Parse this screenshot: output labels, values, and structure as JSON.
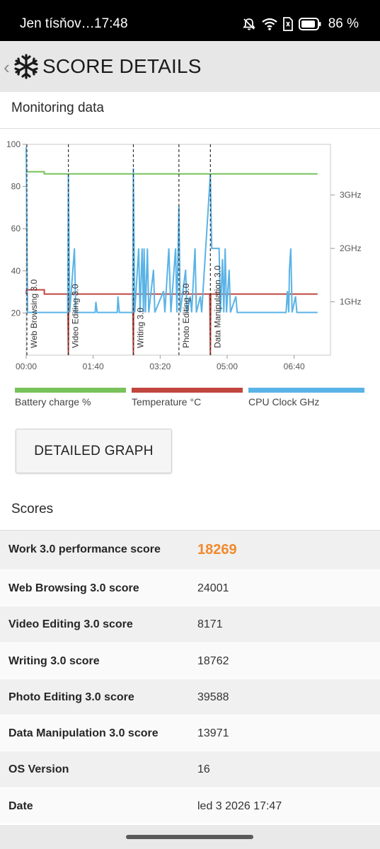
{
  "status_bar": {
    "carrier": "Jen tísňov…",
    "time": "17:48",
    "battery_percent": "86 %",
    "icons": [
      "dnd-off-icon",
      "wifi-icon",
      "sim-icon",
      "battery-icon"
    ]
  },
  "header": {
    "back_glyph": "‹",
    "title": "SCORE DETAILS",
    "logo_icon": "snowflake-icon"
  },
  "monitoring": {
    "title": "Monitoring data"
  },
  "chart_data": {
    "type": "line",
    "x_ticks": [
      "00:00",
      "01:40",
      "03:20",
      "05:00",
      "06:40"
    ],
    "xlim_seconds": [
      0,
      450
    ],
    "y_left_ticks": [
      "20",
      "40",
      "60",
      "80",
      "100"
    ],
    "ylim_left": [
      0,
      100
    ],
    "y_right_ticks": [
      "1GHz",
      "2GHz",
      "3GHz"
    ],
    "ylim_right_ghz": [
      0,
      3.95
    ],
    "grid": false,
    "markers": [
      {
        "label": "Web Browsing 3.0",
        "t": 0,
        "style": "dashed"
      },
      {
        "label": "Video Editing 3.0",
        "t": 63,
        "style": "dashed"
      },
      {
        "label": "Writing 3.0",
        "t": 160,
        "style": "dashed"
      },
      {
        "label": "Photo Editing 3.0",
        "t": 228,
        "style": "dashed"
      },
      {
        "label": "Data Manipulation 3.0",
        "t": 275,
        "style": "dashed"
      }
    ],
    "series": [
      {
        "name": "Battery charge %",
        "color": "#77c25a",
        "axis": "left",
        "points": [
          [
            0,
            87
          ],
          [
            27,
            87
          ],
          [
            27,
            86
          ],
          [
            435,
            86
          ]
        ]
      },
      {
        "name": "Temperature °C",
        "color": "#c0463e",
        "axis": "left",
        "points": [
          [
            0,
            29
          ],
          [
            0.5,
            31
          ],
          [
            27,
            31
          ],
          [
            27,
            29
          ],
          [
            62,
            29
          ],
          [
            63,
            0
          ],
          [
            63.5,
            29
          ],
          [
            159,
            29
          ],
          [
            160,
            0
          ],
          [
            160.5,
            29
          ],
          [
            274,
            29
          ],
          [
            275,
            0
          ],
          [
            275.5,
            29
          ],
          [
            435,
            29
          ]
        ]
      },
      {
        "name": "CPU Clock GHz",
        "color": "#5ab3e6",
        "axis": "right",
        "points": [
          [
            0,
            3.9
          ],
          [
            2,
            0.8
          ],
          [
            62,
            0.8
          ],
          [
            63,
            3.4
          ],
          [
            65,
            0.8
          ],
          [
            72,
            2.0
          ],
          [
            74,
            0.8
          ],
          [
            103,
            0.8
          ],
          [
            104,
            1.0
          ],
          [
            106,
            0.8
          ],
          [
            136,
            0.8
          ],
          [
            137,
            1.1
          ],
          [
            139,
            0.8
          ],
          [
            159,
            0.8
          ],
          [
            160,
            3.5
          ],
          [
            162,
            0.8
          ],
          [
            168,
            2.0
          ],
          [
            170,
            0.8
          ],
          [
            173,
            2.0
          ],
          [
            175,
            0.8
          ],
          [
            176,
            2.0
          ],
          [
            178,
            0.8
          ],
          [
            181,
            2.0
          ],
          [
            183,
            0.8
          ],
          [
            190,
            1.6
          ],
          [
            192,
            0.8
          ],
          [
            205,
            1.2
          ],
          [
            207,
            0.8
          ],
          [
            213,
            2.0
          ],
          [
            216,
            0.8
          ],
          [
            223,
            2.0
          ],
          [
            225,
            0.8
          ],
          [
            228,
            2.8
          ],
          [
            230,
            0.8
          ],
          [
            238,
            1.6
          ],
          [
            240,
            0.8
          ],
          [
            245,
            1.1
          ],
          [
            247,
            0.8
          ],
          [
            252,
            2.0
          ],
          [
            254,
            0.8
          ],
          [
            260,
            1.1
          ],
          [
            262,
            0.8
          ],
          [
            275,
            3.4
          ],
          [
            277,
            2.0
          ],
          [
            288,
            2.0
          ],
          [
            290,
            0.8
          ],
          [
            293,
            1.8
          ],
          [
            295,
            0.8
          ],
          [
            297,
            2.0
          ],
          [
            299,
            0.8
          ],
          [
            303,
            1.6
          ],
          [
            305,
            0.8
          ],
          [
            313,
            1.1
          ],
          [
            315,
            0.8
          ],
          [
            388,
            0.8
          ],
          [
            390,
            1.2
          ],
          [
            392,
            0.8
          ],
          [
            393,
            1.6
          ],
          [
            395,
            2.0
          ],
          [
            397,
            0.8
          ],
          [
            402,
            1.1
          ],
          [
            404,
            0.8
          ],
          [
            435,
            0.8
          ]
        ]
      }
    ]
  },
  "legend": [
    {
      "label": "Battery charge %",
      "color": "#77c25a"
    },
    {
      "label": "Temperature °C",
      "color": "#c0463e"
    },
    {
      "label": "CPU Clock GHz",
      "color": "#5ab3e6"
    }
  ],
  "detailed_graph_label": "DETAILED GRAPH",
  "scores": {
    "title": "Scores",
    "rows": [
      {
        "label": "Work 3.0 performance score",
        "value": "18269"
      },
      {
        "label": "Web Browsing 3.0 score",
        "value": "24001"
      },
      {
        "label": "Video Editing 3.0 score",
        "value": "8171"
      },
      {
        "label": "Writing 3.0 score",
        "value": "18762"
      },
      {
        "label": "Photo Editing 3.0 score",
        "value": "39588"
      },
      {
        "label": "Data Manipulation 3.0 score",
        "value": "13971"
      },
      {
        "label": "OS Version",
        "value": "16"
      },
      {
        "label": "Date",
        "value": "led 3 2026 17:47"
      }
    ],
    "highlight_color": "#f08a2c"
  }
}
